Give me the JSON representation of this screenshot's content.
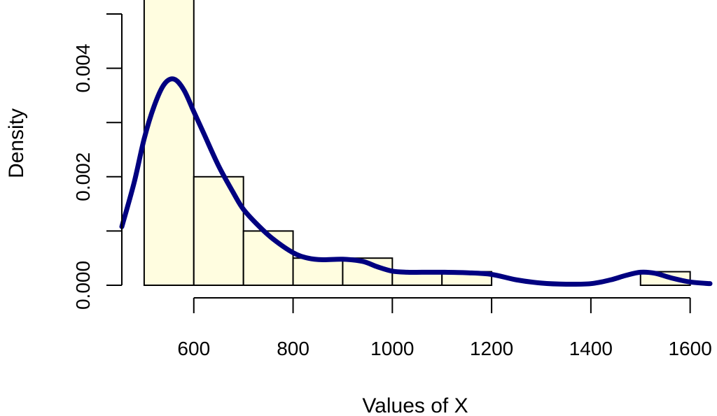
{
  "chart_data": {
    "type": "bar",
    "xlabel": "Values of X",
    "ylabel": "Density",
    "xlim": [
      455,
      1640
    ],
    "ylim": [
      0,
      0.005
    ],
    "x_ticks": [
      600,
      800,
      1000,
      1200,
      1400,
      1600
    ],
    "x_tick_labels": [
      "600",
      "800",
      "1000",
      "1200",
      "1400",
      "1600"
    ],
    "y_ticks": [
      0,
      0.001,
      0.002,
      0.003,
      0.004,
      0.005
    ],
    "y_tick_labels": [
      "0.000",
      "",
      "0.002",
      "",
      "0.004",
      ""
    ],
    "histogram": {
      "bin_edges": [
        500,
        600,
        700,
        800,
        900,
        1000,
        1100,
        1200,
        1300,
        1400,
        1500,
        1600
      ],
      "densities": [
        0.0053,
        0.002,
        0.001,
        0.0005,
        0.0005,
        0.00025,
        0.00025,
        0,
        0,
        0,
        0.00025
      ],
      "fill_color": "#fffde0",
      "edge_color": "#000000"
    },
    "density_curve": {
      "color": "#000080",
      "x": [
        455,
        480,
        500,
        520,
        540,
        560,
        580,
        600,
        620,
        650,
        680,
        700,
        730,
        760,
        800,
        830,
        860,
        900,
        940,
        970,
        1000,
        1030,
        1060,
        1100,
        1150,
        1200,
        1250,
        1300,
        1350,
        1400,
        1440,
        1470,
        1500,
        1530,
        1560,
        1600,
        1640
      ],
      "y": [
        0.00108,
        0.0019,
        0.0027,
        0.0033,
        0.0037,
        0.0038,
        0.0036,
        0.0032,
        0.0028,
        0.0022,
        0.0017,
        0.0014,
        0.0011,
        0.00085,
        0.0006,
        0.0005,
        0.00047,
        0.00048,
        0.00044,
        0.00034,
        0.00026,
        0.00024,
        0.00024,
        0.00024,
        0.00023,
        0.0002,
        0.0001,
        4e-05,
        2e-05,
        3e-05,
        0.0001,
        0.00018,
        0.00024,
        0.00022,
        0.00014,
        6e-05,
        3e-05
      ]
    }
  }
}
